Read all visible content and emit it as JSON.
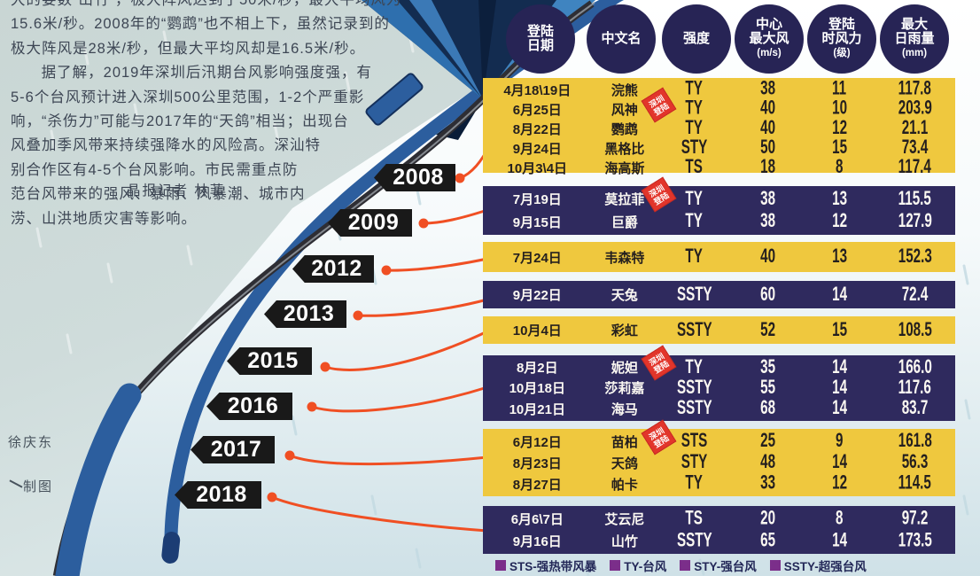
{
  "article": {
    "lines": [
      "大的要数“山竹”，极大阵风达到了50米/秒，最大平均风为",
      "15.6米/秒。2008年的“鹦鹉”也不相上下，虽然记录到的",
      "极大阵风是28米/秒，但最大平均风却是16.5米/秒。",
      "据了解，2019年深圳后汛期台风影响强度强，有",
      "5-6个台风预计进入深圳500公里范围，1-2个严重影",
      "响，“杀伤力”可能与2017年的“天鸽”相当；出现台",
      "风叠加季风带来持续强降水的风险高。深汕特",
      "别合作区有4-5个台风影响。市民需重点防",
      "范台风带来的强风、暴雨、风暴潮、城市内",
      "涝、山洪地质灾害等影响。"
    ],
    "byline": "晶报记者 林菲"
  },
  "credits": {
    "name": "徐庆东",
    "label": "制图"
  },
  "timeline": {
    "years": [
      "2008",
      "2009",
      "2012",
      "2013",
      "2015",
      "2016",
      "2017",
      "2018"
    ]
  },
  "chart_data": {
    "type": "table",
    "columns": [
      "登陆日期",
      "中文名",
      "强度",
      "中心最大风(m/s)",
      "登陆时风力(级)",
      "最大日雨量(mm)"
    ],
    "headers_lines": [
      [
        "登陆",
        "日期"
      ],
      [
        "中文名"
      ],
      [
        "强度"
      ],
      [
        "中心",
        "最大风",
        "(m/s)"
      ],
      [
        "登陆",
        "时风力",
        "(级)"
      ],
      [
        "最大",
        "日雨量",
        "(mm)"
      ]
    ],
    "badge_text": [
      "深圳",
      "登陆"
    ],
    "groups": [
      {
        "year": "2008",
        "rows": [
          {
            "date": "4月18\\19日",
            "name": "浣熊",
            "badge": false,
            "intensity": "TY",
            "wind": "38",
            "force": "11",
            "rain": "117.8"
          },
          {
            "date": "6月25日",
            "name": "风神",
            "badge": true,
            "intensity": "TY",
            "wind": "40",
            "force": "10",
            "rain": "203.9"
          },
          {
            "date": "8月22日",
            "name": "鹦鹉",
            "badge": false,
            "intensity": "TY",
            "wind": "40",
            "force": "12",
            "rain": "21.1"
          },
          {
            "date": "9月24日",
            "name": "黑格比",
            "badge": false,
            "intensity": "STY",
            "wind": "50",
            "force": "15",
            "rain": "73.4"
          },
          {
            "date": "10月3\\4日",
            "name": "海高斯",
            "badge": false,
            "intensity": "TS",
            "wind": "18",
            "force": "8",
            "rain": "117.4"
          }
        ]
      },
      {
        "year": "2009",
        "rows": [
          {
            "date": "7月19日",
            "name": "莫拉菲",
            "badge": true,
            "intensity": "TY",
            "wind": "38",
            "force": "13",
            "rain": "115.5"
          },
          {
            "date": "9月15日",
            "name": "巨爵",
            "badge": false,
            "intensity": "TY",
            "wind": "38",
            "force": "12",
            "rain": "127.9"
          }
        ]
      },
      {
        "year": "2012",
        "rows": [
          {
            "date": "7月24日",
            "name": "韦森特",
            "badge": false,
            "intensity": "TY",
            "wind": "40",
            "force": "13",
            "rain": "152.3"
          }
        ]
      },
      {
        "year": "2013",
        "rows": [
          {
            "date": "9月22日",
            "name": "天兔",
            "badge": false,
            "intensity": "SSTY",
            "wind": "60",
            "force": "14",
            "rain": "72.4"
          }
        ]
      },
      {
        "year": "2015",
        "rows": [
          {
            "date": "10月4日",
            "name": "彩虹",
            "badge": false,
            "intensity": "SSTY",
            "wind": "52",
            "force": "15",
            "rain": "108.5"
          }
        ]
      },
      {
        "year": "2016",
        "rows": [
          {
            "date": "8月2日",
            "name": "妮妲",
            "badge": true,
            "intensity": "TY",
            "wind": "35",
            "force": "14",
            "rain": "166.0"
          },
          {
            "date": "10月18日",
            "name": "莎莉嘉",
            "badge": false,
            "intensity": "SSTY",
            "wind": "55",
            "force": "14",
            "rain": "117.6"
          },
          {
            "date": "10月21日",
            "name": "海马",
            "badge": false,
            "intensity": "SSTY",
            "wind": "68",
            "force": "14",
            "rain": "83.7"
          }
        ]
      },
      {
        "year": "2017",
        "rows": [
          {
            "date": "6月12日",
            "name": "苗柏",
            "badge": true,
            "intensity": "STS",
            "wind": "25",
            "force": "9",
            "rain": "161.8"
          },
          {
            "date": "8月23日",
            "name": "天鸽",
            "badge": false,
            "intensity": "STY",
            "wind": "48",
            "force": "14",
            "rain": "56.3"
          },
          {
            "date": "8月27日",
            "name": "帕卡",
            "badge": false,
            "intensity": "TY",
            "wind": "33",
            "force": "12",
            "rain": "114.5"
          }
        ]
      },
      {
        "year": "2018",
        "rows": [
          {
            "date": "6月6\\7日",
            "name": "艾云尼",
            "badge": false,
            "intensity": "TS",
            "wind": "20",
            "force": "8",
            "rain": "97.2"
          },
          {
            "date": "9月16日",
            "name": "山竹",
            "badge": false,
            "intensity": "SSTY",
            "wind": "65",
            "force": "14",
            "rain": "173.5"
          }
        ]
      }
    ],
    "legend": [
      "STS-强热带风暴",
      "TY-台风",
      "STY-强台风",
      "SSTY-超强台风"
    ],
    "colors": {
      "yellow": "#efc83e",
      "navy": "#2f2a5e",
      "orange": "#f04f23",
      "red_badge": "#e2352b",
      "legend_purple": "#7b2e8a",
      "umbrella_blue": "#2c5e9e"
    }
  }
}
